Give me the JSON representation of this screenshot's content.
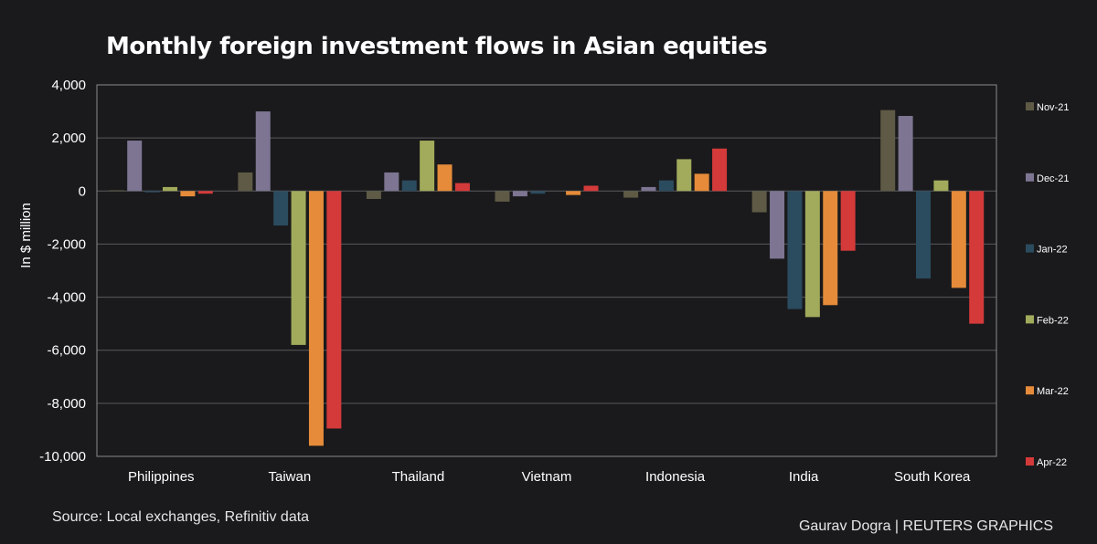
{
  "title": "Monthly foreign investment flows in Asian equities",
  "source": "Source: Local exchanges, Refinitiv data",
  "credit": "Gaurav Dogra | REUTERS GRAPHICS",
  "colors": {
    "background": "#1a1a1c",
    "grid": "#5a5a5e",
    "text": "#ffffff"
  },
  "chart_data": {
    "type": "bar",
    "title": "Monthly foreign investment flows in Asian equities",
    "xlabel": "",
    "ylabel": "In $ million",
    "ylim": [
      -10000,
      4000
    ],
    "yticks": [
      4000,
      2000,
      0,
      -2000,
      -4000,
      -6000,
      -8000,
      -10000
    ],
    "ytick_labels": [
      "4,000",
      "2,000",
      "0",
      "-2,000",
      "-4,000",
      "-6,000",
      "-8,000",
      "-10,000"
    ],
    "grid": true,
    "legend_position": "right",
    "categories": [
      "Philippines",
      "Taiwan",
      "Thailand",
      "Vietnam",
      "Indonesia",
      "India",
      "South Korea"
    ],
    "series": [
      {
        "name": "Nov-21",
        "color": "#5e5a45",
        "values": [
          30,
          700,
          -300,
          -400,
          -250,
          -800,
          3050
        ]
      },
      {
        "name": "Dec-21",
        "color": "#7d7592",
        "values": [
          1900,
          3000,
          700,
          -200,
          150,
          -2550,
          2830
        ]
      },
      {
        "name": "Jan-22",
        "color": "#2b4b5f",
        "values": [
          -50,
          -1300,
          400,
          -100,
          400,
          -4450,
          -3300
        ]
      },
      {
        "name": "Feb-22",
        "color": "#a2ab5b",
        "values": [
          150,
          -5800,
          1900,
          0,
          1200,
          -4750,
          400
        ]
      },
      {
        "name": "Mar-22",
        "color": "#e58b3a",
        "values": [
          -200,
          -9600,
          1000,
          -150,
          650,
          -4300,
          -3650
        ]
      },
      {
        "name": "Apr-22",
        "color": "#d43a3a",
        "values": [
          -100,
          -8950,
          300,
          200,
          1600,
          -2250,
          -5000
        ]
      }
    ]
  }
}
